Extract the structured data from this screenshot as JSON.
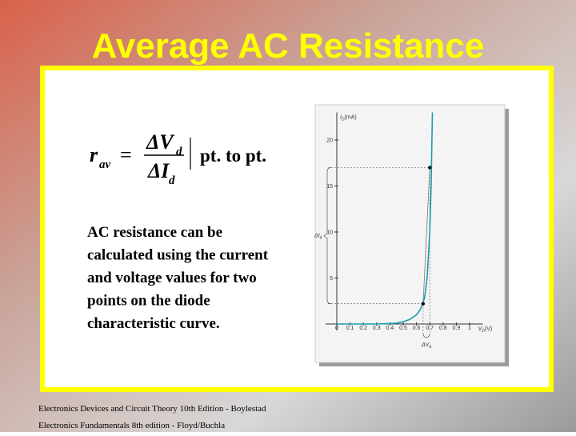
{
  "title": "Average AC Resistance",
  "formula": {
    "lhs": "r",
    "lhs_sub": "av",
    "equals": "=",
    "numerator": "ΔV",
    "numerator_sub": "d",
    "denominator": "ΔI",
    "denominator_sub": "d",
    "note": "pt. to pt."
  },
  "body": [
    "AC resistance can be",
    "calculated using the current",
    "and voltage values for two",
    "points on the diode",
    "characteristic curve."
  ],
  "figure": {
    "y_label": {
      "symbol": "I",
      "sub": "D",
      "unit": "(mA)"
    },
    "x_label": {
      "symbol": "V",
      "sub": "D",
      "unit": "(V)"
    },
    "delta_i": {
      "symbol": "ΔI",
      "sub": "d"
    },
    "delta_v": {
      "symbol": "ΔV",
      "sub": "d"
    },
    "xlim": [
      0,
      1.1
    ],
    "ylim": [
      0,
      23
    ],
    "xticks": [
      0,
      0.1,
      0.2,
      0.3,
      0.4,
      0.5,
      0.6,
      0.7,
      0.8,
      0.9,
      1
    ],
    "yticks": [
      5,
      10,
      15,
      20
    ],
    "curve": {
      "x": [
        0,
        0.1,
        0.2,
        0.3,
        0.4,
        0.45,
        0.5,
        0.55,
        0.6,
        0.63,
        0.66,
        0.68,
        0.7,
        0.71,
        0.72
      ],
      "y": [
        0,
        0,
        0,
        0,
        0.05,
        0.1,
        0.25,
        0.5,
        1,
        1.6,
        2.8,
        5,
        10,
        15,
        23
      ]
    },
    "points": {
      "x": [
        0.65,
        0.7
      ],
      "y": [
        2.2,
        17
      ]
    }
  },
  "footer": [
    "Electronics Devices and Circuit Theory 10th Edition - Boylestad",
    "Electronics Fundamentals 8th edition - Floyd/Buchla"
  ]
}
